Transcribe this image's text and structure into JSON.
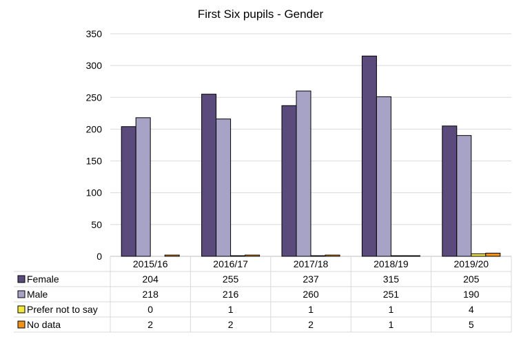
{
  "chart_data": {
    "type": "bar",
    "title": "First Six pupils - Gender",
    "categories": [
      "2015/16",
      "2016/17",
      "2017/18",
      "2018/19",
      "2019/20"
    ],
    "series": [
      {
        "name": "Female",
        "values": [
          204,
          255,
          237,
          315,
          205
        ],
        "color": "#5b4a7c"
      },
      {
        "name": "Male",
        "values": [
          218,
          216,
          260,
          251,
          190
        ],
        "color": "#a6a3c6"
      },
      {
        "name": "Prefer not to say",
        "values": [
          0,
          1,
          1,
          1,
          4
        ],
        "color": "#f5e642"
      },
      {
        "name": "No data",
        "values": [
          2,
          2,
          2,
          1,
          5
        ],
        "color": "#f0911c"
      }
    ],
    "ylim": [
      0,
      350
    ],
    "yticks": [
      0,
      50,
      100,
      150,
      200,
      250,
      300,
      350
    ],
    "grid": true,
    "legend": "data-table"
  }
}
